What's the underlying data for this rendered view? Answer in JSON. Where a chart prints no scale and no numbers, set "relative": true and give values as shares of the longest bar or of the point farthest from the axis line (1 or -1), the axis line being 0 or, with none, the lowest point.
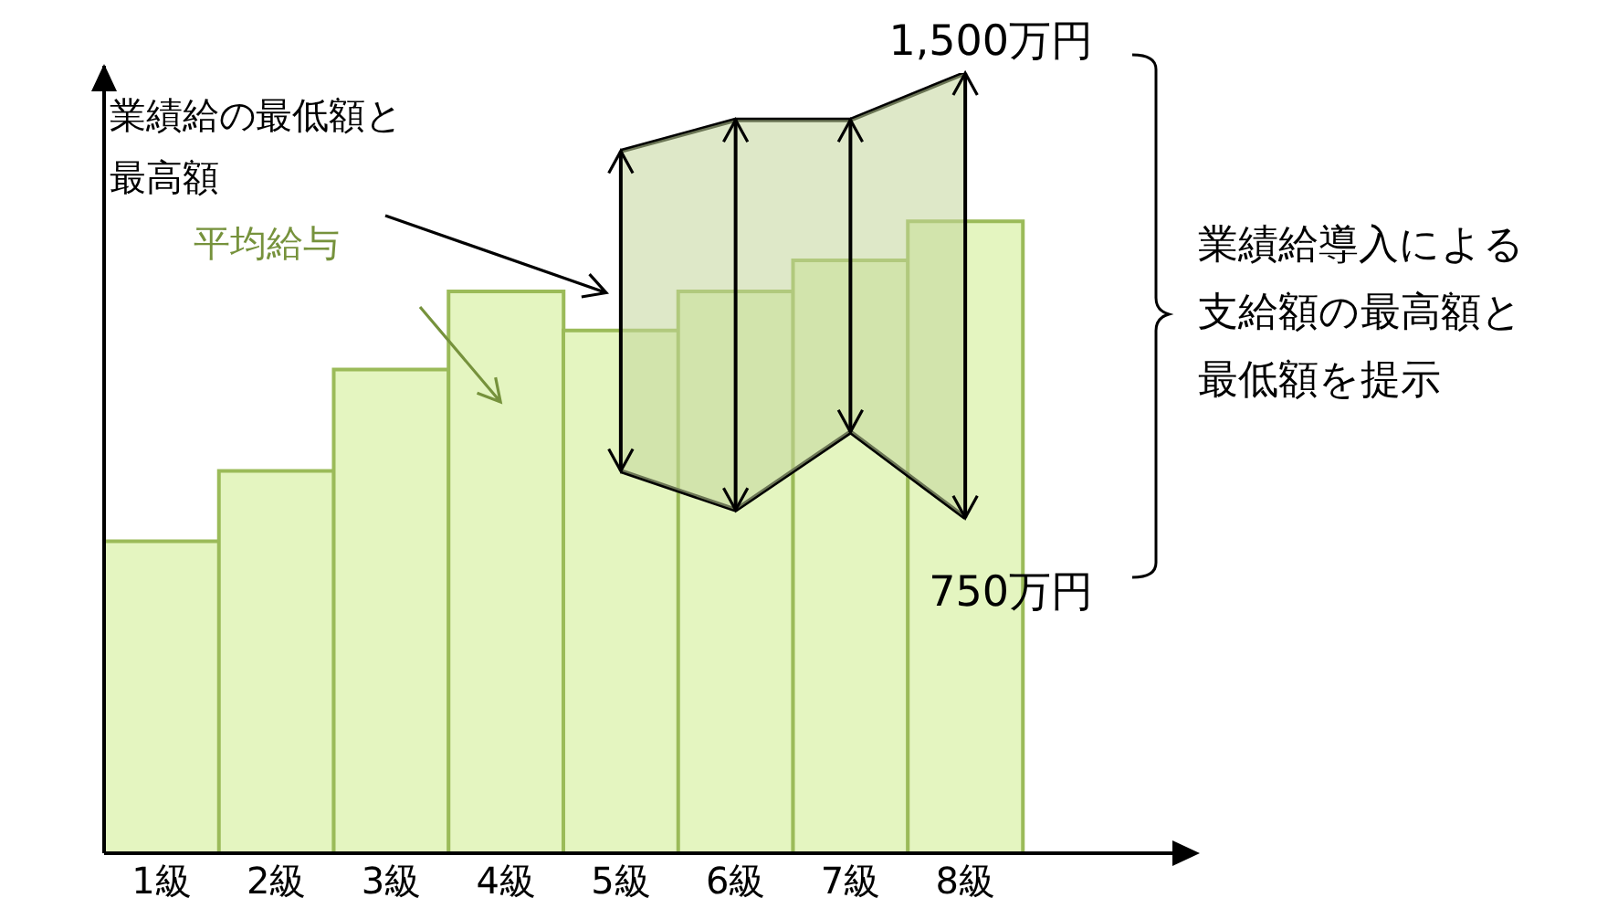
{
  "chart_data": {
    "type": "bar",
    "relative": true,
    "tick_labels": "x",
    "categories": [
      "1級",
      "2級",
      "3級",
      "4級",
      "5級",
      "6級",
      "7級",
      "8級"
    ],
    "series": [
      {
        "name": "平均給与",
        "color": "#e4f5c0",
        "values": [
          0.4,
          0.49,
          0.62,
          0.72,
          0.67,
          0.72,
          0.76,
          0.81
        ]
      },
      {
        "type": "area",
        "name": "業績給の最低額と最高額",
        "color": "#c3d69b",
        "values": [
          null,
          null,
          null,
          null,
          0.9,
          0.94,
          0.94,
          1
        ]
      },
      {
        "type": "line",
        "color": "#000000",
        "values": [
          null,
          null,
          null,
          null,
          0.49,
          0.44,
          0.54,
          0.43
        ]
      }
    ],
    "annotations": [
      {
        "text": "1,500万円",
        "x": "8級",
        "y": 1
      },
      {
        "text": "750万円",
        "x": "8級",
        "y": 0.43
      },
      "業績給導入による支給額の最高額と最低額を提示"
    ]
  }
}
